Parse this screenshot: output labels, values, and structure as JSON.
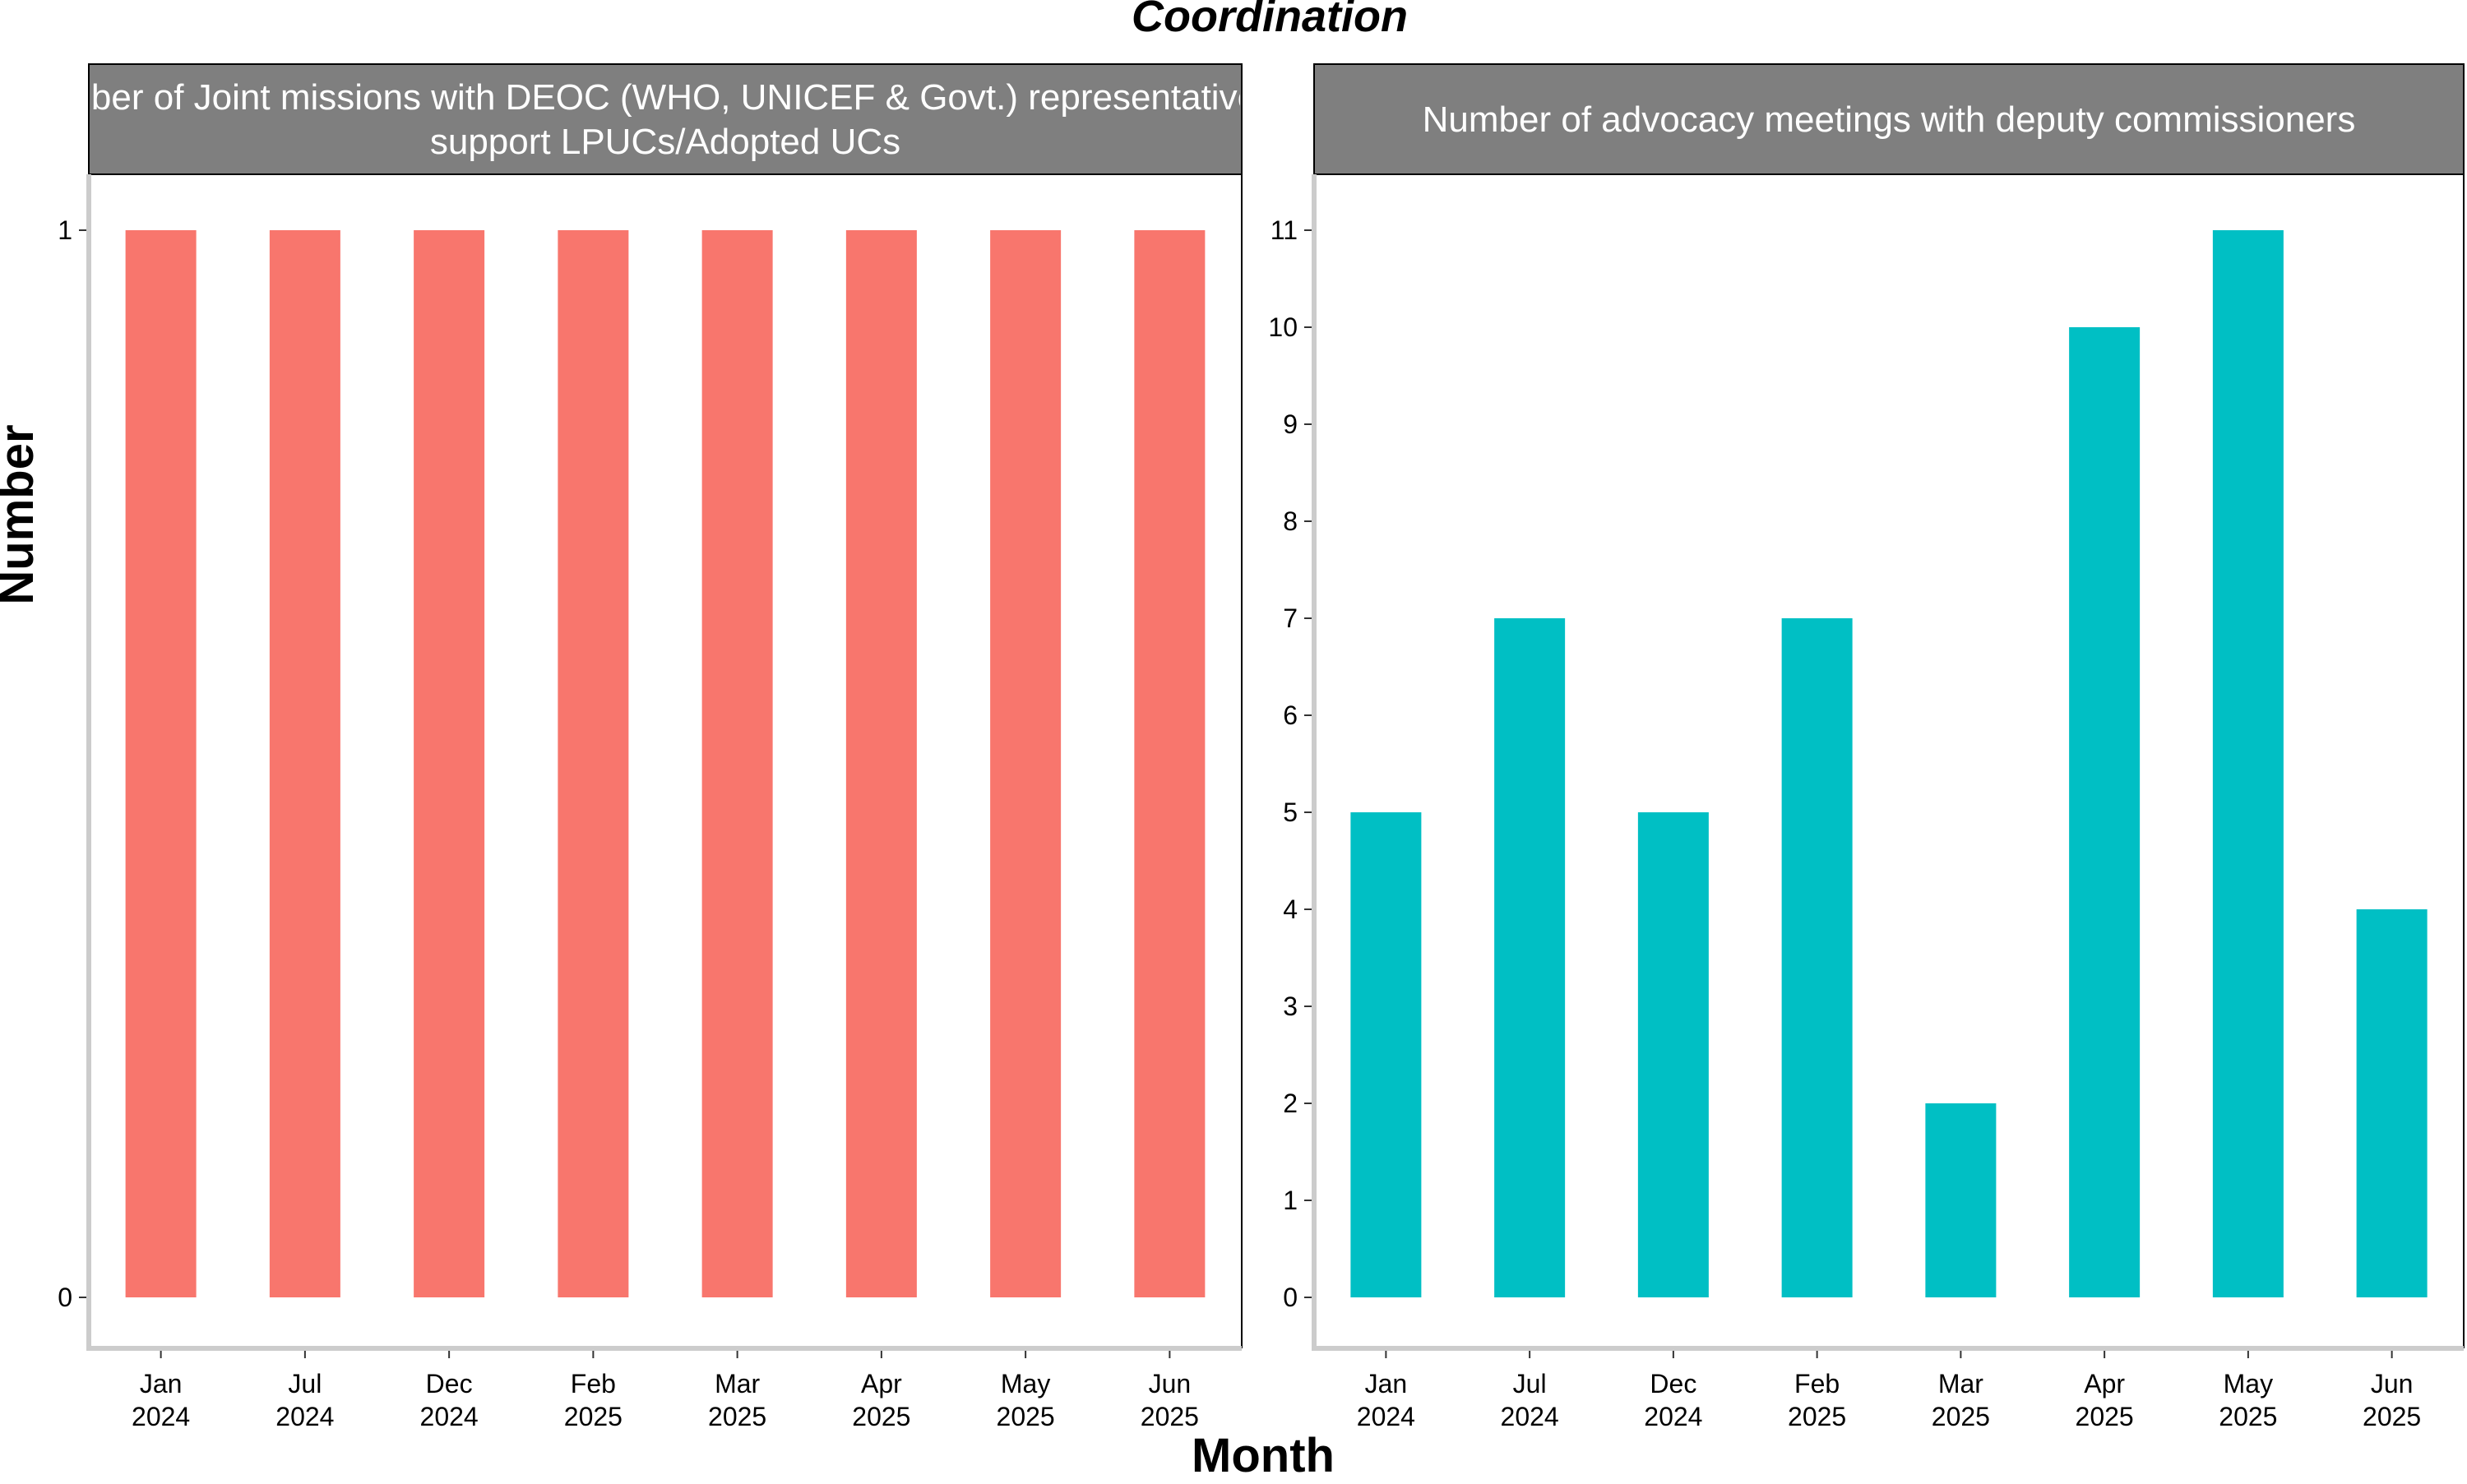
{
  "chart_data": {
    "type": "bar",
    "title": "Coordination",
    "xlabel": "Month",
    "ylabel": "Number",
    "grid": false,
    "legend": "none",
    "categories": [
      [
        "Jan",
        "2024"
      ],
      [
        "Jul",
        "2024"
      ],
      [
        "Dec",
        "2024"
      ],
      [
        "Feb",
        "2025"
      ],
      [
        "Mar",
        "2025"
      ],
      [
        "Apr",
        "2025"
      ],
      [
        "May",
        "2025"
      ],
      [
        "Jun",
        "2025"
      ]
    ],
    "panels": [
      {
        "strip_lines": [
          "Number of Joint missions with DEOC (WHO, UNICEF & Govt.) representatives to",
          "support LPUCs/Adopted UCs"
        ],
        "values": [
          1,
          1,
          1,
          1,
          1,
          1,
          1,
          1
        ],
        "ylim": [
          0,
          1
        ],
        "yticks": [
          0,
          1
        ],
        "color": "#F8766D"
      },
      {
        "strip_lines": [
          "Number of advocacy meetings with deputy commissioners"
        ],
        "values": [
          5,
          7,
          5,
          7,
          2,
          10,
          11,
          4
        ],
        "ylim": [
          0,
          11
        ],
        "yticks": [
          0,
          1,
          2,
          3,
          4,
          5,
          6,
          7,
          8,
          9,
          10,
          11
        ],
        "color": "#00BFC4"
      }
    ],
    "colors": {
      "strip_background": "#7f7f7f",
      "axis_line": "#cccccc"
    }
  }
}
